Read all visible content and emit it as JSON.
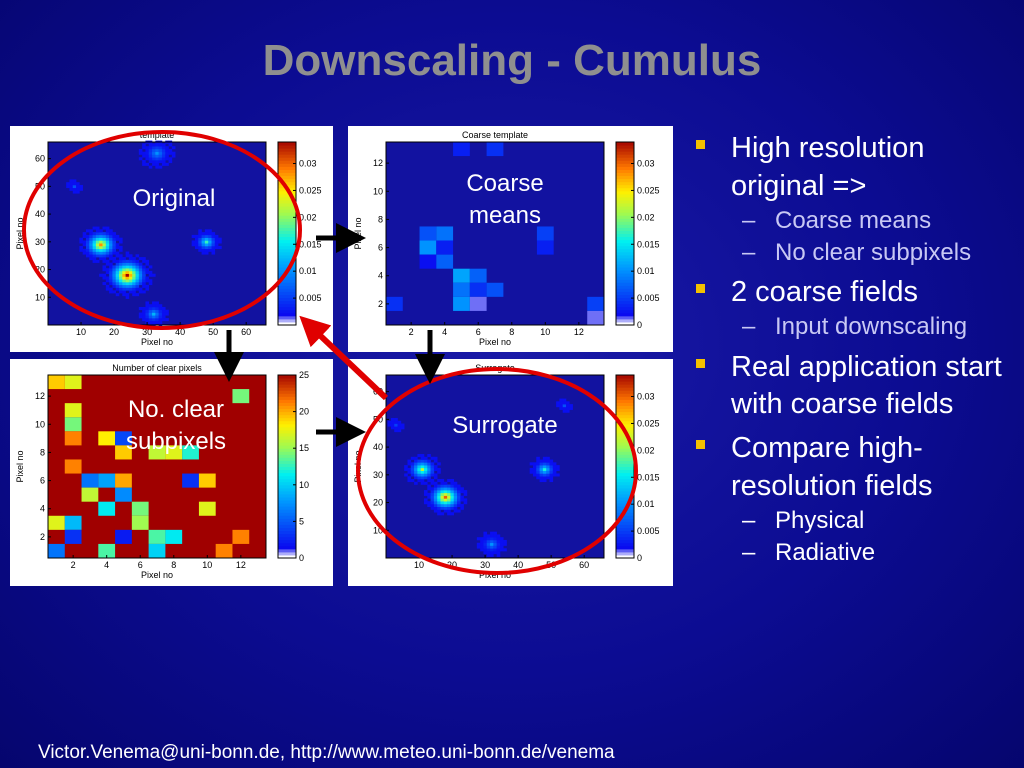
{
  "slide": {
    "title": "Downscaling - Cumulus",
    "footer": "Victor.Venema@uni-bonn.de, http://www.meteo.uni-bonn.de/venema"
  },
  "bullets": [
    {
      "text": "High resolution original =>",
      "subs": [
        "Coarse means",
        "No clear subpixels"
      ],
      "sub_color": "#c8c8f4"
    },
    {
      "text": "2 coarse fields",
      "subs": [
        "Input downscaling"
      ],
      "sub_color": "#c8c8f4"
    },
    {
      "text": "Real application start with coarse fields",
      "subs": [],
      "sub_color": "#c8c8f4"
    },
    {
      "text": "Compare high-resolution fields",
      "subs": [
        "Physical",
        "Radiative"
      ],
      "sub_color": "#ffffff"
    }
  ],
  "overlay_labels": {
    "original": "Original",
    "coarse_means": "Coarse means",
    "no_clear": "No. clear subpixels",
    "surrogate": "Surrogate"
  },
  "colors": {
    "background": "#0a0a8c",
    "title": "#8f8f8f",
    "bullet_marker": "#f3c100",
    "ellipse": "#e00000",
    "arrow": "#000000"
  },
  "chart_data": [
    {
      "type": "heatmap",
      "title": "template",
      "xlabel": "Pixel no",
      "ylabel": "Pixel no",
      "xticks": [
        10,
        20,
        30,
        40,
        50,
        60
      ],
      "yticks": [
        10,
        20,
        30,
        40,
        50,
        60
      ],
      "xlim": [
        0,
        66
      ],
      "ylim": [
        0,
        66
      ],
      "colorbar": {
        "ticks": [
          "0.03",
          "0.025",
          "0.02",
          "0.015",
          "0.01",
          "0.005"
        ],
        "range": [
          0,
          0.034
        ]
      },
      "blobs": [
        {
          "x": 16,
          "y": 29,
          "r": 6,
          "peak": 0.028
        },
        {
          "x": 24,
          "y": 18,
          "r": 7,
          "peak": 0.034
        },
        {
          "x": 48,
          "y": 30,
          "r": 4,
          "peak": 0.017
        },
        {
          "x": 33,
          "y": 62,
          "r": 5,
          "peak": 0.01
        },
        {
          "x": 32,
          "y": 4,
          "r": 4,
          "peak": 0.012
        },
        {
          "x": 8,
          "y": 50,
          "r": 2,
          "peak": 0.006
        }
      ]
    },
    {
      "type": "heatmap",
      "title": "Coarse template",
      "xlabel": "Pixel no",
      "ylabel": "Pixel no",
      "xticks": [
        2,
        4,
        6,
        8,
        10,
        12
      ],
      "yticks": [
        2,
        4,
        6,
        8,
        10,
        12
      ],
      "xlim": [
        0.5,
        13.5
      ],
      "ylim": [
        0.5,
        13.5
      ],
      "colorbar": {
        "ticks": [
          "0.03",
          "0.025",
          "0.02",
          "0.015",
          "0.01",
          "0.005",
          "0"
        ],
        "range": [
          0,
          0.034
        ]
      },
      "cells": [
        [
          3,
          7,
          0.006
        ],
        [
          4,
          7,
          0.008
        ],
        [
          3,
          6,
          0.01
        ],
        [
          4,
          6,
          0.003
        ],
        [
          3,
          5,
          0.002
        ],
        [
          4,
          5,
          0.007
        ],
        [
          5,
          4,
          0.011
        ],
        [
          6,
          4,
          0.007
        ],
        [
          5,
          3,
          0.008
        ],
        [
          6,
          3,
          0.004
        ],
        [
          5,
          2,
          0.01
        ],
        [
          6,
          2,
          0.001
        ],
        [
          7,
          3,
          0.006
        ],
        [
          10,
          7,
          0.005
        ],
        [
          10,
          6,
          0.003
        ],
        [
          1,
          2,
          0.004
        ],
        [
          13,
          2,
          0.005
        ],
        [
          13,
          1,
          0.001
        ],
        [
          5,
          13,
          0.003
        ],
        [
          7,
          13,
          0.004
        ]
      ]
    },
    {
      "type": "heatmap",
      "title": "Number of clear pixels",
      "xlabel": "Pixel no",
      "ylabel": "Pixel no",
      "xticks": [
        2,
        4,
        6,
        8,
        10,
        12
      ],
      "yticks": [
        2,
        4,
        6,
        8,
        10,
        12
      ],
      "xlim": [
        0.5,
        13.5
      ],
      "ylim": [
        0.5,
        13.5
      ],
      "colorbar": {
        "ticks": [
          "25",
          "20",
          "15",
          "10",
          "5",
          "0"
        ],
        "range": [
          0,
          25
        ]
      },
      "default_value": 25,
      "cells": [
        [
          1,
          13,
          19
        ],
        [
          2,
          13,
          17
        ],
        [
          12,
          12,
          14
        ],
        [
          2,
          11,
          17
        ],
        [
          2,
          10,
          14
        ],
        [
          2,
          9,
          21
        ],
        [
          4,
          9,
          18
        ],
        [
          5,
          9,
          4
        ],
        [
          5,
          8,
          19
        ],
        [
          7,
          8,
          16
        ],
        [
          8,
          8,
          17
        ],
        [
          9,
          8,
          12
        ],
        [
          2,
          7,
          21
        ],
        [
          3,
          6,
          6
        ],
        [
          4,
          6,
          8
        ],
        [
          5,
          6,
          20
        ],
        [
          9,
          6,
          3
        ],
        [
          10,
          6,
          19
        ],
        [
          3,
          5,
          16
        ],
        [
          5,
          5,
          7
        ],
        [
          4,
          4,
          11
        ],
        [
          6,
          4,
          14
        ],
        [
          6,
          3,
          15
        ],
        [
          7,
          2,
          13
        ],
        [
          8,
          2,
          11
        ],
        [
          1,
          3,
          17
        ],
        [
          2,
          3,
          9
        ],
        [
          2,
          2,
          3
        ],
        [
          5,
          2,
          2
        ],
        [
          1,
          1,
          6
        ],
        [
          4,
          1,
          13
        ],
        [
          7,
          1,
          10
        ],
        [
          11,
          1,
          21
        ],
        [
          12,
          2,
          21
        ],
        [
          10,
          4,
          17
        ]
      ]
    },
    {
      "type": "heatmap",
      "title": "Surrogate",
      "xlabel": "Pixel no",
      "ylabel": "Pixel no",
      "xticks": [
        10,
        20,
        30,
        40,
        50,
        60
      ],
      "yticks": [
        10,
        20,
        30,
        40,
        50,
        60
      ],
      "xlim": [
        0,
        66
      ],
      "ylim": [
        0,
        66
      ],
      "colorbar": {
        "ticks": [
          "0.03",
          "0.025",
          "0.02",
          "0.015",
          "0.01",
          "0.005",
          "0"
        ],
        "range": [
          0,
          0.034
        ]
      },
      "blobs": [
        {
          "x": 11,
          "y": 32,
          "r": 5,
          "peak": 0.022
        },
        {
          "x": 18,
          "y": 22,
          "r": 6,
          "peak": 0.03
        },
        {
          "x": 48,
          "y": 32,
          "r": 4,
          "peak": 0.016
        },
        {
          "x": 32,
          "y": 5,
          "r": 4,
          "peak": 0.01
        },
        {
          "x": 54,
          "y": 55,
          "r": 2,
          "peak": 0.006
        },
        {
          "x": 3,
          "y": 48,
          "r": 2,
          "peak": 0.005
        }
      ]
    }
  ]
}
